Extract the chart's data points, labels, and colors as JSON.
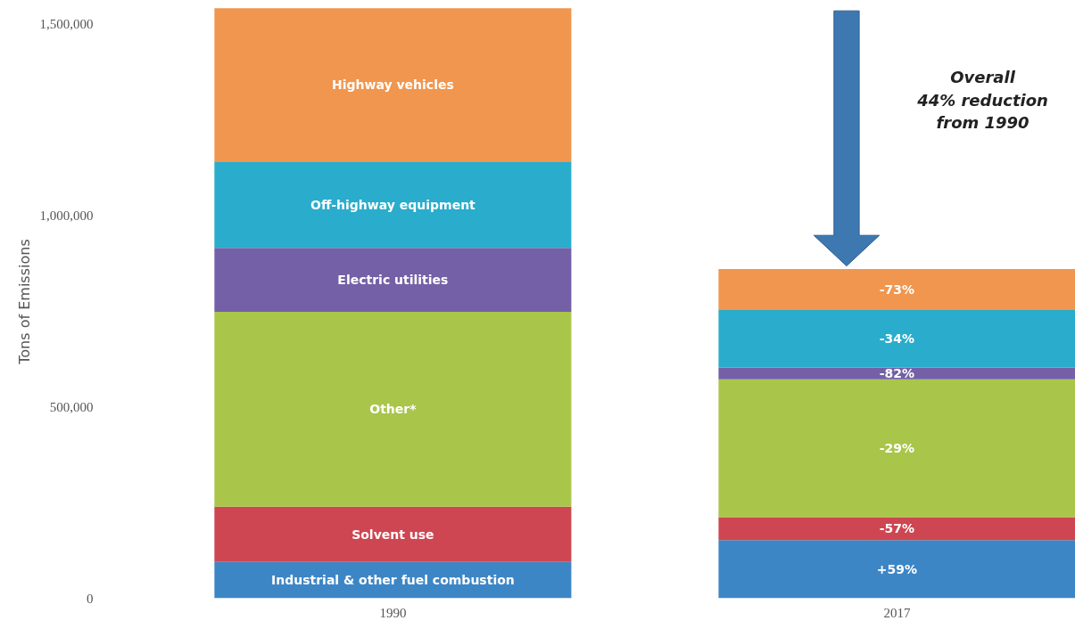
{
  "chart_data": {
    "type": "bar",
    "stacked": true,
    "ylabel": "Tons of Emissions",
    "categories": [
      "1990",
      "2017"
    ],
    "ylim": [
      0,
      1550000
    ],
    "yticks": [
      0,
      {
        "value": 500000,
        "label": "500,000"
      },
      {
        "value": 1000000,
        "label": "1,000,000"
      },
      {
        "value": 1500000,
        "label": "1,500,000"
      }
    ],
    "grid": false,
    "series": [
      {
        "name": "Industrial & other fuel combustion",
        "color": "#3d86c6",
        "values": [
          95000,
          152000
        ]
      },
      {
        "name": "Solvent use",
        "color": "#cd4651",
        "values": [
          144000,
          60000
        ]
      },
      {
        "name": "Other*",
        "color": "#a9c54a",
        "values": [
          509000,
          360000
        ]
      },
      {
        "name": "Electric utilities",
        "color": "#7460a6",
        "values": [
          167000,
          30000
        ]
      },
      {
        "name": "Off-highway equipment",
        "color": "#2aaccc",
        "values": [
          226000,
          151000
        ]
      },
      {
        "name": "Highway vehicles",
        "color": "#f0964f",
        "values": [
          400000,
          107000
        ]
      }
    ],
    "annotations": [
      "+59%",
      "-57%",
      "-29%",
      "-82%",
      "-34%",
      "-73%",
      "Overall\n44% reduction\nfrom 1990"
    ]
  }
}
